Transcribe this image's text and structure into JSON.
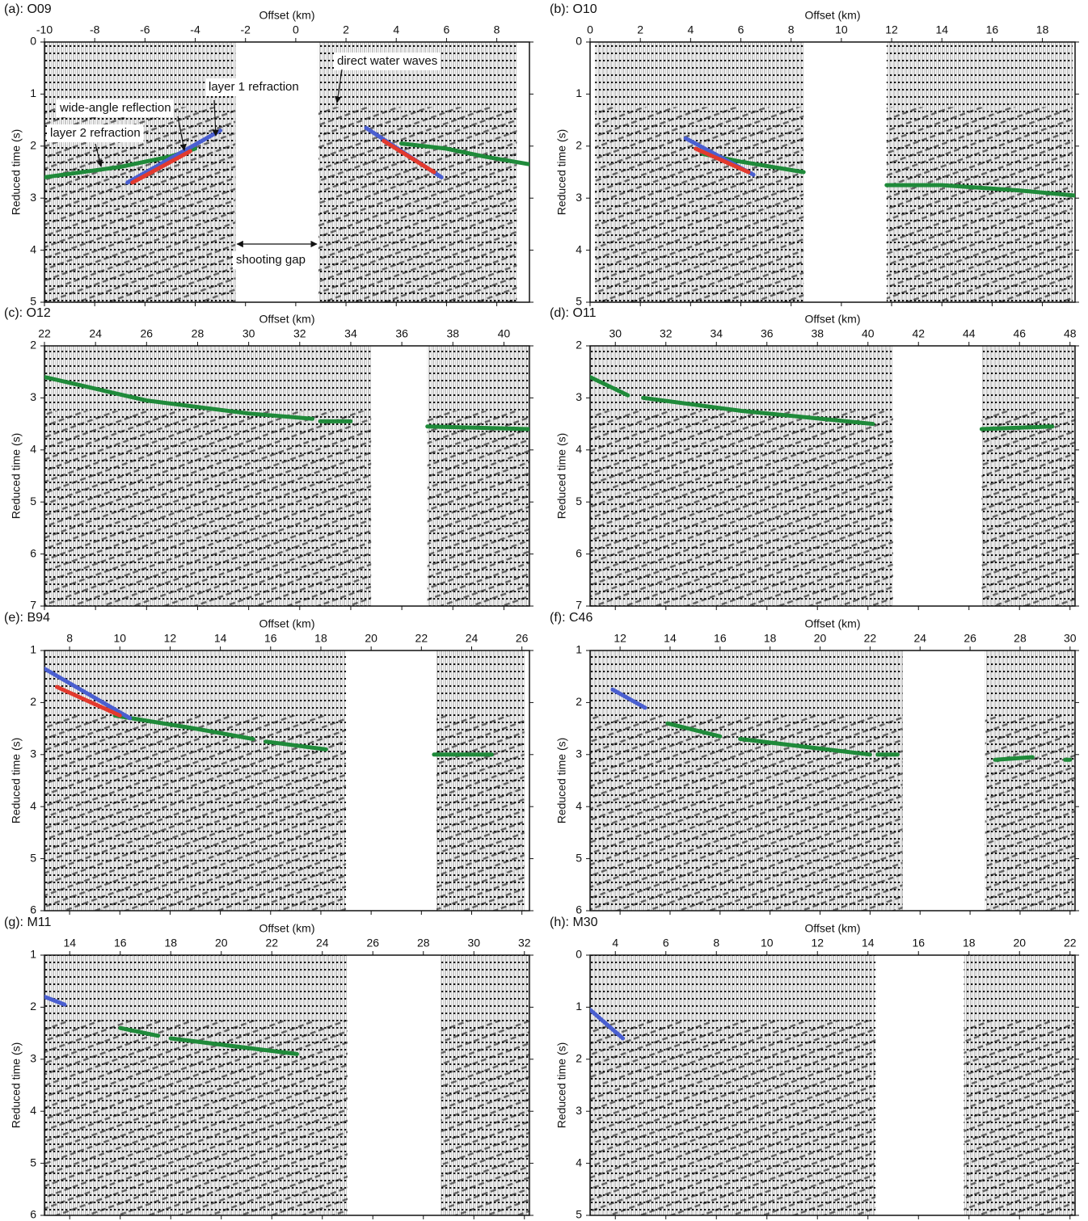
{
  "chart_data": [
    {
      "type": "line",
      "title": "(a): O09",
      "xlabel": "Offset (km)",
      "ylabel": "Reduced time (s)",
      "xlim": [
        -10,
        9.3
      ],
      "xticks": [
        -10,
        -8,
        -6,
        -4,
        -2,
        0,
        2,
        4,
        6,
        8
      ],
      "ylim": [
        5,
        0
      ],
      "yticks": [
        0,
        1,
        2,
        3,
        4,
        5
      ],
      "trace_ranges": [
        [
          -10,
          -2.4
        ],
        [
          0.9,
          8.8
        ]
      ],
      "annotations": [
        "direct water waves",
        "layer 1 refraction",
        "wide-angle reflection",
        "layer 2 refraction",
        "shooting gap"
      ],
      "series": [
        {
          "color": "#1f8a3a",
          "x": [
            -10,
            -7,
            -5,
            -4,
            null,
            4.2,
            6,
            7.5,
            9.3
          ],
          "values": [
            2.6,
            2.4,
            2.2,
            2.05,
            null,
            1.95,
            2.05,
            2.2,
            2.35
          ]
        },
        {
          "color": "#4a5fd0",
          "x": [
            -6.7,
            -3,
            null,
            2.8,
            5.8
          ],
          "values": [
            2.7,
            1.7,
            null,
            1.65,
            2.6
          ]
        },
        {
          "color": "#e23a2e",
          "x": [
            -6.5,
            -4.2,
            null,
            3.5,
            5.5
          ],
          "values": [
            2.7,
            2.1,
            null,
            1.9,
            2.5
          ]
        }
      ]
    },
    {
      "type": "line",
      "title": "(b): O10",
      "xlabel": "Offset (km)",
      "ylabel": "Reduced time (s)",
      "xlim": [
        0,
        19.3
      ],
      "xticks": [
        0,
        2,
        4,
        6,
        8,
        10,
        12,
        14,
        16,
        18
      ],
      "ylim": [
        5,
        0
      ],
      "yticks": [
        0,
        1,
        2,
        3,
        4,
        5
      ],
      "trace_ranges": [
        [
          0.2,
          8.5
        ],
        [
          11.8,
          19.2
        ]
      ],
      "series": [
        {
          "color": "#1f8a3a",
          "x": [
            4.5,
            6,
            8.5,
            null,
            11.8,
            14,
            17,
            19.3
          ],
          "values": [
            2.15,
            2.3,
            2.5,
            null,
            2.75,
            2.75,
            2.85,
            2.95
          ]
        },
        {
          "color": "#4a5fd0",
          "x": [
            3.8,
            6.5
          ],
          "values": [
            1.85,
            2.55
          ]
        },
        {
          "color": "#e23a2e",
          "x": [
            4.2,
            6.3
          ],
          "values": [
            2.05,
            2.5
          ]
        }
      ]
    },
    {
      "type": "line",
      "title": "(c): O12",
      "xlabel": "Offset (km)",
      "ylabel": "Reduced time (s)",
      "xlim": [
        22,
        41
      ],
      "xticks": [
        22,
        24,
        26,
        28,
        30,
        32,
        34,
        36,
        38,
        40
      ],
      "ylim": [
        7,
        2
      ],
      "yticks": [
        2,
        3,
        4,
        5,
        6,
        7
      ],
      "trace_ranges": [
        [
          22,
          34.8
        ],
        [
          37,
          41
        ]
      ],
      "series": [
        {
          "color": "#1f8a3a",
          "x": [
            22,
            26,
            30,
            32.5,
            null,
            32.8,
            34,
            null,
            37,
            41
          ],
          "values": [
            2.6,
            3.05,
            3.3,
            3.4,
            null,
            3.45,
            3.45,
            null,
            3.55,
            3.6
          ]
        }
      ]
    },
    {
      "type": "line",
      "title": "(d): O11",
      "xlabel": "Offset (km)",
      "ylabel": "Reduced time (s)",
      "xlim": [
        29,
        48.2
      ],
      "xticks": [
        30,
        32,
        34,
        36,
        38,
        40,
        42,
        44,
        46,
        48
      ],
      "ylim": [
        7,
        2
      ],
      "yticks": [
        2,
        3,
        4,
        5,
        6,
        7
      ],
      "trace_ranges": [
        [
          29,
          41
        ],
        [
          44.5,
          48.2
        ]
      ],
      "series": [
        {
          "color": "#1f8a3a",
          "x": [
            29,
            30.5,
            null,
            31.1,
            35,
            40.2,
            null,
            44.5,
            47.3
          ],
          "values": [
            2.6,
            2.95,
            null,
            3.0,
            3.25,
            3.5,
            null,
            3.6,
            3.55
          ]
        }
      ]
    },
    {
      "type": "line",
      "title": "(e): B94",
      "xlabel": "Offset (km)",
      "ylabel": "Reduced time (s)",
      "xlim": [
        7,
        26.3
      ],
      "xticks": [
        8,
        10,
        12,
        14,
        16,
        18,
        20,
        22,
        24,
        26
      ],
      "ylim": [
        6,
        1
      ],
      "yticks": [
        1,
        2,
        3,
        4,
        5,
        6
      ],
      "trace_ranges": [
        [
          7,
          19
        ],
        [
          22.6,
          26.1
        ]
      ],
      "series": [
        {
          "color": "#1f8a3a",
          "x": [
            9.8,
            13,
            15.3,
            null,
            15.8,
            18.2,
            null,
            22.5,
            24.8
          ],
          "values": [
            2.25,
            2.5,
            2.7,
            null,
            2.75,
            2.9,
            null,
            3.0,
            3.0
          ]
        },
        {
          "color": "#4a5fd0",
          "x": [
            7,
            10.4
          ],
          "values": [
            1.35,
            2.3
          ]
        },
        {
          "color": "#e23a2e",
          "x": [
            7.5,
            10
          ],
          "values": [
            1.7,
            2.25
          ]
        }
      ]
    },
    {
      "type": "line",
      "title": "(f): C46",
      "xlabel": "Offset (km)",
      "ylabel": "Reduced time (s)",
      "xlim": [
        10.8,
        30.2
      ],
      "xticks": [
        12,
        14,
        16,
        18,
        20,
        22,
        24,
        26,
        28,
        30
      ],
      "ylim": [
        6,
        1
      ],
      "yticks": [
        1,
        2,
        3,
        4,
        5,
        6
      ],
      "trace_ranges": [
        [
          10.8,
          23.3
        ],
        [
          26.6,
          30.2
        ]
      ],
      "series": [
        {
          "color": "#4a5fd0",
          "x": [
            11.7,
            13
          ],
          "values": [
            1.75,
            2.1
          ]
        },
        {
          "color": "#1f8a3a",
          "x": [
            13.9,
            16,
            null,
            16.8,
            22,
            null,
            22.3,
            23.1,
            null,
            27,
            28.5,
            null,
            29.8,
            30
          ],
          "values": [
            2.4,
            2.65,
            null,
            2.7,
            3.0,
            null,
            3.0,
            3.0,
            null,
            3.1,
            3.05,
            null,
            3.1,
            3.1
          ]
        }
      ]
    },
    {
      "type": "line",
      "title": "(g): M11",
      "xlabel": "Offset (km)",
      "ylabel": "Reduced time (s)",
      "xlim": [
        13,
        32.2
      ],
      "xticks": [
        14,
        16,
        18,
        20,
        22,
        24,
        26,
        28,
        30,
        32
      ],
      "ylim": [
        6,
        1
      ],
      "yticks": [
        1,
        2,
        3,
        4,
        5,
        6
      ],
      "trace_ranges": [
        [
          13,
          25
        ],
        [
          28.7,
          32.2
        ]
      ],
      "series": [
        {
          "color": "#4a5fd0",
          "x": [
            13,
            13.8
          ],
          "values": [
            1.8,
            1.95
          ]
        },
        {
          "color": "#1f8a3a",
          "x": [
            16,
            17.5,
            null,
            18,
            23
          ],
          "values": [
            2.4,
            2.55,
            null,
            2.6,
            2.9
          ]
        }
      ]
    },
    {
      "type": "line",
      "title": "(h): M30",
      "xlabel": "Offset (km)",
      "ylabel": "Reduced time (s)",
      "xlim": [
        3,
        22.2
      ],
      "xticks": [
        4,
        6,
        8,
        10,
        12,
        14,
        16,
        18,
        20,
        22
      ],
      "ylim": [
        5,
        0
      ],
      "yticks": [
        0,
        1,
        2,
        3,
        4,
        5
      ],
      "trace_ranges": [
        [
          3,
          14.3
        ],
        [
          17.8,
          22.2
        ]
      ],
      "series": [
        {
          "color": "#4a5fd0",
          "x": [
            3,
            4.3
          ],
          "values": [
            1.05,
            1.6
          ]
        }
      ]
    }
  ]
}
